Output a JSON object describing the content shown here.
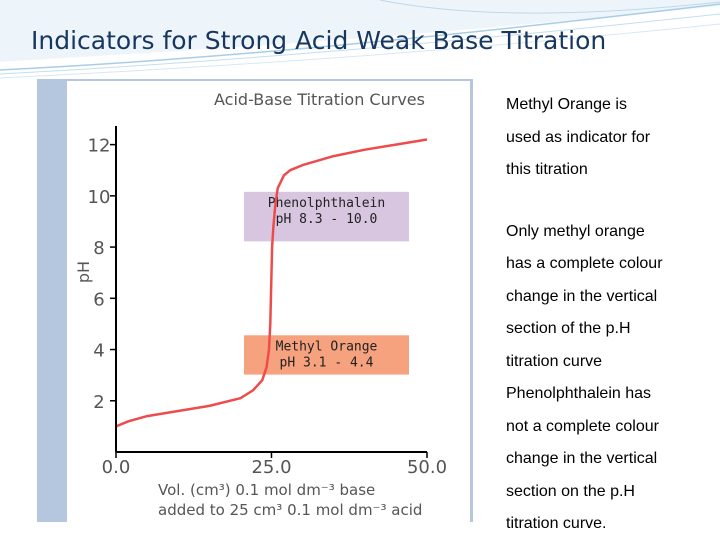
{
  "slide": {
    "title": "Indicators for Strong Acid Weak Base Titration",
    "body_lines_1": [
      "Methyl Orange is",
      "used as indicator for",
      "this titration"
    ],
    "body_lines_2": [
      "Only methyl orange",
      "has a complete colour",
      "change in the vertical",
      "section of the p.H",
      "titration curve",
      "Phenolphthalein has",
      "not a complete colour",
      "change in the vertical",
      "section on the p.H",
      "titration curve."
    ]
  },
  "colors": {
    "title": "#17375e",
    "curve": "#ee4c4c",
    "phenolphthalein_box": "#d8c6e0",
    "methyl_orange_box": "#f7a27f",
    "axis": "#000000",
    "frame": "#b4c7de"
  },
  "chart_data": {
    "type": "line",
    "title": "Acid-Base Titration Curves",
    "xlabel_line1": "Vol. (cm³) 0.1 mol dm⁻³  base",
    "xlabel_line2": "added to 25 cm³ 0.1 mol dm⁻³  acid",
    "ylabel": "pH",
    "xlim": [
      0,
      50
    ],
    "ylim": [
      0,
      13
    ],
    "x_ticks": [
      "0.0",
      "25.0",
      "50.0"
    ],
    "y_ticks": [
      "2",
      "4",
      "6",
      "8",
      "10",
      "12"
    ],
    "grid": false,
    "series": [
      {
        "x": [
          0,
          2,
          5,
          10,
          15,
          20,
          22,
          23.5,
          24.2,
          24.6,
          24.8,
          24.9,
          25.0,
          25.1,
          25.3,
          25.6,
          26,
          27,
          28,
          30,
          35,
          40,
          45,
          50
        ],
        "y": [
          1.0,
          1.2,
          1.4,
          1.6,
          1.8,
          2.1,
          2.4,
          2.8,
          3.3,
          4.0,
          5.0,
          6.0,
          7.0,
          8.0,
          8.8,
          9.6,
          10.3,
          10.8,
          11.0,
          11.2,
          11.55,
          11.8,
          12.0,
          12.2
        ]
      }
    ],
    "indicator_ranges": [
      {
        "name": "Phenolphthalein",
        "range_label": "pH 8.3 - 10.0",
        "ph_min": 8.3,
        "ph_max": 10.0
      },
      {
        "name": "Methyl Orange",
        "range_label": "pH 3.1 - 4.4",
        "ph_min": 3.1,
        "ph_max": 4.4
      }
    ]
  }
}
